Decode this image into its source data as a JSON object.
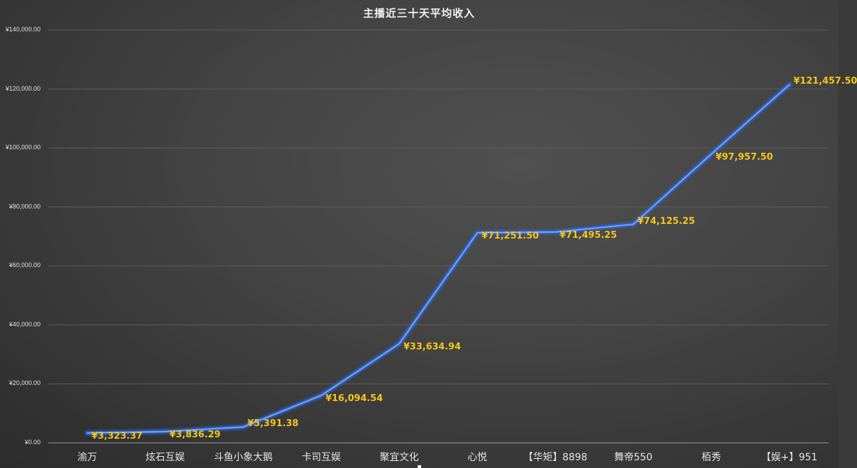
{
  "chart_data": {
    "type": "line",
    "title": "主播近三十天平均收入",
    "xlabel": "",
    "ylabel": "",
    "ylim": [
      0,
      140000
    ],
    "grid": true,
    "legend": "none",
    "categories": [
      "渝万",
      "炫石互娱",
      "斗鱼小象大鹅",
      "卡司互娱",
      "聚宜文化",
      "心悦",
      "【华矩】8898",
      "舞帝550",
      "栢秀",
      "【娱+】951"
    ],
    "series": [
      {
        "name": "近三十天平均收入",
        "color": "#4a86e8",
        "values": [
          3323.37,
          3836.29,
          5391.38,
          16094.54,
          33634.94,
          71251.5,
          71495.25,
          74125.25,
          97957.5,
          121457.5
        ]
      }
    ],
    "data_labels": [
      "¥3,323.37",
      "¥3,836.29",
      "¥5,391.38",
      "¥16,094.54",
      "¥33,634.94",
      "¥71,251.50",
      "¥71,495.25",
      "¥74,125.25",
      "¥97,957.50",
      "¥121,457.50"
    ],
    "y_ticks": [
      "¥0.00",
      "¥20,000.00",
      "¥40,000.00",
      "¥60,000.00",
      "¥80,000.00",
      "¥100,000.00",
      "¥120,000.00",
      "¥140,000.00"
    ],
    "label_color": "#f5c518"
  }
}
